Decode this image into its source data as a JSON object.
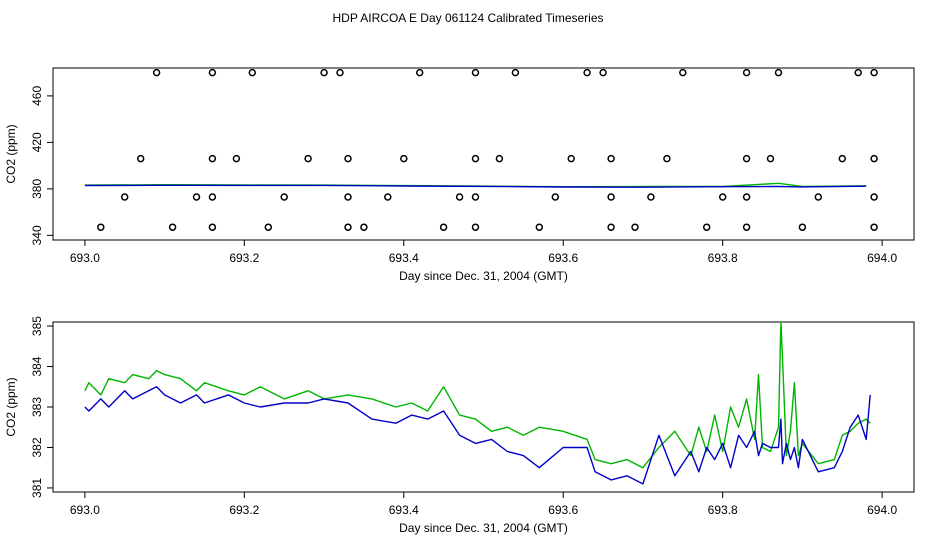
{
  "title": "HDP AIRCOA E  Day 061124  Calibrated Timeseries",
  "colors": {
    "series_green": "#00b400",
    "series_blue": "#0000c8",
    "points": "#000000"
  },
  "chart_data": [
    {
      "type": "line",
      "name": "top-panel",
      "xlabel": "Day since Dec. 31, 2004 (GMT)",
      "ylabel": "CO2 (ppm)",
      "xlim": [
        692.96,
        694.04
      ],
      "ylim": [
        336,
        484
      ],
      "xticks": [
        "693.0",
        "693.2",
        "693.4",
        "693.6",
        "693.8",
        "694.0"
      ],
      "xtick_values": [
        693.0,
        693.2,
        693.4,
        693.6,
        693.8,
        694.0
      ],
      "yticks": [
        "340",
        "380",
        "420",
        "460"
      ],
      "ytick_values": [
        340,
        380,
        420,
        460
      ],
      "scatter_points": {
        "marker": "open-circle",
        "x": [
          693.09,
          693.16,
          693.21,
          693.3,
          693.32,
          693.42,
          693.49,
          693.54,
          693.63,
          693.65,
          693.75,
          693.83,
          693.87,
          693.97,
          693.99,
          693.07,
          693.16,
          693.19,
          693.28,
          693.33,
          693.4,
          693.49,
          693.52,
          693.61,
          693.66,
          693.73,
          693.83,
          693.86,
          693.95,
          693.99,
          693.05,
          693.14,
          693.16,
          693.25,
          693.33,
          693.38,
          693.47,
          693.49,
          693.59,
          693.66,
          693.71,
          693.8,
          693.83,
          693.92,
          693.99,
          693.02,
          693.11,
          693.16,
          693.23,
          693.33,
          693.35,
          693.45,
          693.49,
          693.57,
          693.66,
          693.69,
          693.78,
          693.83,
          693.9,
          693.99
        ],
        "y": [
          480,
          480,
          480,
          480,
          480,
          480,
          480,
          480,
          480,
          480,
          480,
          480,
          480,
          480,
          480,
          406,
          406,
          406,
          406,
          406,
          406,
          406,
          406,
          406,
          406,
          406,
          406,
          406,
          406,
          406,
          373,
          373,
          373,
          373,
          373,
          373,
          373,
          373,
          373,
          373,
          373,
          373,
          373,
          373,
          373,
          347,
          347,
          347,
          347,
          347,
          347,
          347,
          347,
          347,
          347,
          347,
          347,
          347,
          347,
          347
        ]
      },
      "series": [
        {
          "name": "",
          "color": "#00b400",
          "x": [
            693.0,
            693.1,
            693.2,
            693.3,
            693.4,
            693.5,
            693.6,
            693.7,
            693.8,
            693.87,
            693.9,
            693.98
          ],
          "values": [
            383.2,
            383.6,
            383.3,
            383.2,
            382.8,
            382.4,
            381.9,
            382.0,
            382.0,
            384.8,
            382.1,
            382.6
          ]
        },
        {
          "name": "",
          "color": "#0000c8",
          "x": [
            693.0,
            693.1,
            693.2,
            693.3,
            693.4,
            693.5,
            693.6,
            693.7,
            693.8,
            693.87,
            693.9,
            693.98
          ],
          "values": [
            382.9,
            383.1,
            383.0,
            383.0,
            382.5,
            382.1,
            381.6,
            381.4,
            381.9,
            382.0,
            381.7,
            382.3
          ]
        }
      ]
    },
    {
      "type": "line",
      "name": "bottom-panel",
      "xlabel": "Day since Dec. 31, 2004 (GMT)",
      "ylabel": "CO2 (ppm)",
      "xlim": [
        692.96,
        694.04
      ],
      "ylim": [
        380.9,
        385.1
      ],
      "xticks": [
        "693.0",
        "693.2",
        "693.4",
        "693.6",
        "693.8",
        "694.0"
      ],
      "xtick_values": [
        693.0,
        693.2,
        693.4,
        693.6,
        693.8,
        694.0
      ],
      "yticks": [
        "381",
        "382",
        "383",
        "384",
        "385"
      ],
      "ytick_values": [
        381,
        382,
        383,
        384,
        385
      ],
      "series": [
        {
          "name": "",
          "color": "#00b400",
          "x": [
            693.0,
            693.005,
            693.02,
            693.03,
            693.05,
            693.06,
            693.08,
            693.09,
            693.1,
            693.12,
            693.14,
            693.15,
            693.18,
            693.2,
            693.22,
            693.25,
            693.28,
            693.3,
            693.33,
            693.36,
            693.39,
            693.41,
            693.43,
            693.45,
            693.47,
            693.49,
            693.51,
            693.53,
            693.55,
            693.57,
            693.6,
            693.63,
            693.64,
            693.66,
            693.68,
            693.7,
            693.72,
            693.74,
            693.76,
            693.77,
            693.78,
            693.79,
            693.8,
            693.81,
            693.82,
            693.83,
            693.84,
            693.845,
            693.85,
            693.86,
            693.87,
            693.873,
            693.875,
            693.88,
            693.885,
            693.89,
            693.895,
            693.9,
            693.92,
            693.94,
            693.95,
            693.96,
            693.97,
            693.98,
            693.985
          ],
          "values": [
            383.4,
            383.6,
            383.3,
            383.7,
            383.6,
            383.8,
            383.7,
            383.9,
            383.8,
            383.7,
            383.4,
            383.6,
            383.4,
            383.3,
            383.5,
            383.2,
            383.4,
            383.2,
            383.3,
            383.2,
            383.0,
            383.1,
            382.9,
            383.5,
            382.8,
            382.7,
            382.4,
            382.5,
            382.3,
            382.5,
            382.4,
            382.2,
            381.7,
            381.6,
            381.7,
            381.5,
            382.0,
            382.4,
            381.8,
            382.5,
            381.9,
            382.8,
            381.9,
            383.0,
            382.5,
            383.2,
            382.2,
            383.8,
            382.0,
            381.9,
            382.5,
            385.1,
            384.2,
            381.8,
            382.4,
            383.6,
            381.8,
            382.1,
            381.6,
            381.7,
            382.3,
            382.4,
            382.6,
            382.7,
            382.6
          ]
        },
        {
          "name": "",
          "color": "#0000c8",
          "x": [
            693.0,
            693.005,
            693.02,
            693.03,
            693.05,
            693.06,
            693.08,
            693.09,
            693.1,
            693.12,
            693.14,
            693.15,
            693.18,
            693.2,
            693.22,
            693.25,
            693.28,
            693.3,
            693.33,
            693.36,
            693.39,
            693.41,
            693.43,
            693.45,
            693.47,
            693.49,
            693.51,
            693.53,
            693.55,
            693.57,
            693.6,
            693.63,
            693.64,
            693.66,
            693.68,
            693.7,
            693.72,
            693.74,
            693.76,
            693.77,
            693.78,
            693.79,
            693.8,
            693.81,
            693.82,
            693.83,
            693.84,
            693.845,
            693.85,
            693.86,
            693.87,
            693.873,
            693.875,
            693.88,
            693.885,
            693.89,
            693.895,
            693.9,
            693.92,
            693.94,
            693.95,
            693.96,
            693.97,
            693.98,
            693.985
          ],
          "values": [
            383.0,
            382.9,
            383.2,
            383.0,
            383.4,
            383.2,
            383.4,
            383.5,
            383.3,
            383.1,
            383.3,
            383.1,
            383.3,
            383.1,
            383.0,
            383.1,
            383.1,
            383.2,
            383.1,
            382.7,
            382.6,
            382.8,
            382.7,
            382.9,
            382.3,
            382.1,
            382.2,
            381.9,
            381.8,
            381.5,
            382.0,
            382.0,
            381.4,
            381.2,
            381.3,
            381.1,
            382.3,
            381.3,
            381.9,
            381.4,
            382.0,
            381.7,
            382.1,
            381.5,
            382.3,
            382.0,
            382.4,
            381.8,
            382.1,
            382.0,
            382.0,
            382.7,
            381.6,
            382.1,
            381.7,
            382.0,
            381.5,
            382.2,
            381.4,
            381.5,
            381.9,
            382.5,
            382.8,
            382.2,
            383.3
          ]
        }
      ]
    }
  ]
}
